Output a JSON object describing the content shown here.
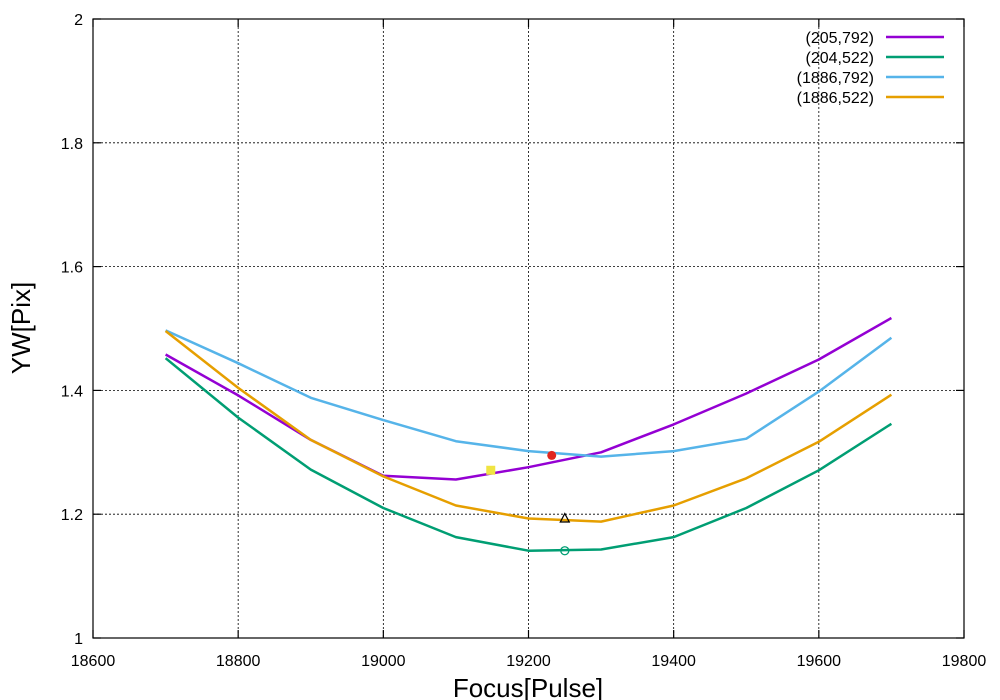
{
  "chart_data": {
    "type": "line",
    "xlabel": "Focus[Pulse]",
    "ylabel": "YW[Pix]",
    "xlim": [
      18600,
      19800
    ],
    "ylim": [
      1.0,
      2.0
    ],
    "xticks": [
      18600,
      18800,
      19000,
      19200,
      19400,
      19600,
      19800
    ],
    "yticks": [
      1,
      1.2,
      1.4,
      1.6,
      1.8,
      2
    ],
    "ytick_labels": [
      "1",
      "1.2",
      "1.4",
      "1.6",
      "1.8",
      "2"
    ],
    "grid": true,
    "legend_position": "top-right",
    "x": [
      18700,
      18800,
      18900,
      19000,
      19100,
      19200,
      19300,
      19400,
      19500,
      19600,
      19700
    ],
    "series": [
      {
        "name": "(205,792)",
        "color": "#9400d3",
        "values": [
          1.458,
          1.392,
          1.32,
          1.262,
          1.256,
          1.276,
          1.3,
          1.345,
          1.395,
          1.45,
          1.517
        ]
      },
      {
        "name": "(204,522)",
        "color": "#009e73",
        "values": [
          1.452,
          1.356,
          1.272,
          1.21,
          1.163,
          1.141,
          1.143,
          1.163,
          1.21,
          1.271,
          1.346
        ]
      },
      {
        "name": "(1886,792)",
        "color": "#56b4e9",
        "values": [
          1.497,
          1.444,
          1.388,
          1.352,
          1.318,
          1.302,
          1.293,
          1.302,
          1.322,
          1.398,
          1.485
        ]
      },
      {
        "name": "(1886,522)",
        "color": "#e69f00",
        "values": [
          1.496,
          1.404,
          1.32,
          1.261,
          1.214,
          1.193,
          1.188,
          1.214,
          1.258,
          1.317,
          1.393
        ]
      }
    ],
    "markers": [
      {
        "series": "(205,792)",
        "x": 19232,
        "y": 1.295,
        "shape": "filled-circle",
        "color": "#e0261f"
      },
      {
        "series": "(204,522)",
        "x": 19250,
        "y": 1.141,
        "shape": "open-circle",
        "color": "#009e73"
      },
      {
        "series": "(1886,792)",
        "x": 19148,
        "y": 1.271,
        "shape": "filled-square",
        "color": "#f0e442"
      },
      {
        "series": "(1886,522)",
        "x": 19250,
        "y": 1.193,
        "shape": "open-triangle",
        "color": "#000000"
      }
    ]
  }
}
